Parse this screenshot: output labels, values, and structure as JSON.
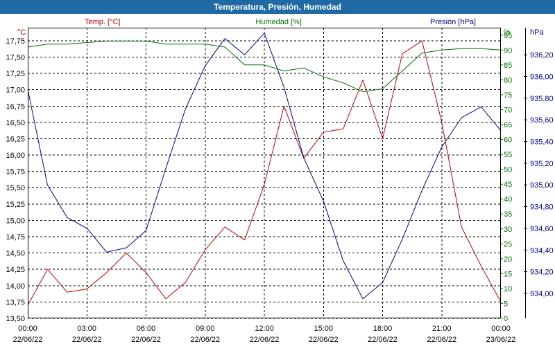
{
  "window": {
    "title": "Temperatura, Presión, Humedad"
  },
  "colors": {
    "temp": "#c00000",
    "hum": "#007000",
    "pres": "#000090",
    "titlebar": "#1f6aa5"
  },
  "chart_data": {
    "type": "line",
    "title": "Temperatura, Presión, Humedad",
    "grid": true,
    "x_ticks": [
      {
        "time": "00:00",
        "date": "22/06/22"
      },
      {
        "time": "03:00",
        "date": "22/06/22"
      },
      {
        "time": "06:00",
        "date": "22/06/22"
      },
      {
        "time": "09:00",
        "date": "22/06/22"
      },
      {
        "time": "12:00",
        "date": "22/06/22"
      },
      {
        "time": "15:00",
        "date": "22/06/22"
      },
      {
        "time": "18:00",
        "date": "22/06/22"
      },
      {
        "time": "21:00",
        "date": "22/06/22"
      },
      {
        "time": "00:00",
        "date": "23/06/22"
      }
    ],
    "x_hours": [
      0,
      1,
      2,
      3,
      4,
      5,
      6,
      7,
      8,
      9,
      10,
      11,
      12,
      13,
      14,
      15,
      16,
      17,
      18,
      19,
      20,
      21,
      22,
      23,
      24
    ],
    "axes": {
      "temp": {
        "label": "Temp. [°C]",
        "unit": "°C",
        "range": [
          13.5,
          17.95
        ],
        "ticks": [
          "13,50",
          "13,75",
          "14,00",
          "14,25",
          "14,50",
          "14,75",
          "15,00",
          "15,25",
          "15,50",
          "15,75",
          "16,00",
          "16,25",
          "16,50",
          "16,75",
          "17,00",
          "17,25",
          "17,50",
          "17,75"
        ]
      },
      "hum": {
        "label": "Humedad [%]",
        "unit": "%",
        "range": [
          0,
          97.5
        ],
        "ticks": [
          "0",
          "5",
          "10",
          "15",
          "20",
          "25",
          "30",
          "35",
          "40",
          "45",
          "50",
          "55",
          "60",
          "65",
          "70",
          "75",
          "80",
          "85",
          "90",
          "95"
        ]
      },
      "pres": {
        "label": "Presión [hPa]",
        "unit": "hPa",
        "range": [
          933.77,
          936.45
        ],
        "ticks": [
          "934,00",
          "934,20",
          "934,40",
          "934,60",
          "934,80",
          "935,00",
          "935,20",
          "935,40",
          "935,60",
          "935,80",
          "936,00",
          "936,20"
        ],
        "tick_values": [
          934.0,
          934.2,
          934.4,
          934.6,
          934.8,
          935.0,
          935.2,
          935.4,
          935.6,
          935.8,
          936.0,
          936.2
        ]
      }
    },
    "series": [
      {
        "name": "Temp. [°C]",
        "axis": "temp",
        "values": [
          13.7,
          14.25,
          13.9,
          13.95,
          14.2,
          14.5,
          14.2,
          13.8,
          14.05,
          14.55,
          14.9,
          14.7,
          15.55,
          16.75,
          15.95,
          16.35,
          16.4,
          17.15,
          16.25,
          17.55,
          17.75,
          16.5,
          14.9,
          14.3,
          13.75
        ]
      },
      {
        "name": "Humedad [%]",
        "axis": "hum",
        "values": [
          91,
          92,
          92,
          92.5,
          93,
          93,
          93,
          92,
          92,
          92,
          91,
          85,
          85,
          83,
          84,
          81,
          79,
          76,
          77,
          83,
          89,
          90,
          90.5,
          90.5,
          90
        ]
      },
      {
        "name": "Presión [hPa]",
        "axis": "pres",
        "values": [
          935.88,
          935.0,
          934.7,
          934.6,
          934.38,
          934.42,
          934.58,
          935.15,
          935.7,
          936.1,
          936.35,
          936.2,
          936.4,
          935.9,
          935.25,
          934.85,
          934.3,
          933.95,
          934.1,
          934.5,
          934.95,
          935.35,
          935.62,
          935.72,
          935.5
        ]
      }
    ]
  }
}
